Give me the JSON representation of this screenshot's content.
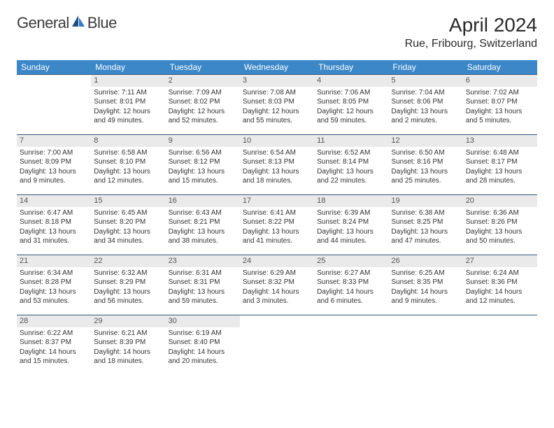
{
  "brand": {
    "name1": "General",
    "name2": "Blue"
  },
  "title": "April 2024",
  "location": "Rue, Fribourg, Switzerland",
  "header_bg": "#3b87c8",
  "days": [
    "Sunday",
    "Monday",
    "Tuesday",
    "Wednesday",
    "Thursday",
    "Friday",
    "Saturday"
  ],
  "weeks": [
    [
      null,
      {
        "n": "1",
        "sr": "7:11 AM",
        "ss": "8:01 PM",
        "dl": "12 hours and 49 minutes."
      },
      {
        "n": "2",
        "sr": "7:09 AM",
        "ss": "8:02 PM",
        "dl": "12 hours and 52 minutes."
      },
      {
        "n": "3",
        "sr": "7:08 AM",
        "ss": "8:03 PM",
        "dl": "12 hours and 55 minutes."
      },
      {
        "n": "4",
        "sr": "7:06 AM",
        "ss": "8:05 PM",
        "dl": "12 hours and 59 minutes."
      },
      {
        "n": "5",
        "sr": "7:04 AM",
        "ss": "8:06 PM",
        "dl": "13 hours and 2 minutes."
      },
      {
        "n": "6",
        "sr": "7:02 AM",
        "ss": "8:07 PM",
        "dl": "13 hours and 5 minutes."
      }
    ],
    [
      {
        "n": "7",
        "sr": "7:00 AM",
        "ss": "8:09 PM",
        "dl": "13 hours and 9 minutes."
      },
      {
        "n": "8",
        "sr": "6:58 AM",
        "ss": "8:10 PM",
        "dl": "13 hours and 12 minutes."
      },
      {
        "n": "9",
        "sr": "6:56 AM",
        "ss": "8:12 PM",
        "dl": "13 hours and 15 minutes."
      },
      {
        "n": "10",
        "sr": "6:54 AM",
        "ss": "8:13 PM",
        "dl": "13 hours and 18 minutes."
      },
      {
        "n": "11",
        "sr": "6:52 AM",
        "ss": "8:14 PM",
        "dl": "13 hours and 22 minutes."
      },
      {
        "n": "12",
        "sr": "6:50 AM",
        "ss": "8:16 PM",
        "dl": "13 hours and 25 minutes."
      },
      {
        "n": "13",
        "sr": "6:48 AM",
        "ss": "8:17 PM",
        "dl": "13 hours and 28 minutes."
      }
    ],
    [
      {
        "n": "14",
        "sr": "6:47 AM",
        "ss": "8:18 PM",
        "dl": "13 hours and 31 minutes."
      },
      {
        "n": "15",
        "sr": "6:45 AM",
        "ss": "8:20 PM",
        "dl": "13 hours and 34 minutes."
      },
      {
        "n": "16",
        "sr": "6:43 AM",
        "ss": "8:21 PM",
        "dl": "13 hours and 38 minutes."
      },
      {
        "n": "17",
        "sr": "6:41 AM",
        "ss": "8:22 PM",
        "dl": "13 hours and 41 minutes."
      },
      {
        "n": "18",
        "sr": "6:39 AM",
        "ss": "8:24 PM",
        "dl": "13 hours and 44 minutes."
      },
      {
        "n": "19",
        "sr": "6:38 AM",
        "ss": "8:25 PM",
        "dl": "13 hours and 47 minutes."
      },
      {
        "n": "20",
        "sr": "6:36 AM",
        "ss": "8:26 PM",
        "dl": "13 hours and 50 minutes."
      }
    ],
    [
      {
        "n": "21",
        "sr": "6:34 AM",
        "ss": "8:28 PM",
        "dl": "13 hours and 53 minutes."
      },
      {
        "n": "22",
        "sr": "6:32 AM",
        "ss": "8:29 PM",
        "dl": "13 hours and 56 minutes."
      },
      {
        "n": "23",
        "sr": "6:31 AM",
        "ss": "8:31 PM",
        "dl": "13 hours and 59 minutes."
      },
      {
        "n": "24",
        "sr": "6:29 AM",
        "ss": "8:32 PM",
        "dl": "14 hours and 3 minutes."
      },
      {
        "n": "25",
        "sr": "6:27 AM",
        "ss": "8:33 PM",
        "dl": "14 hours and 6 minutes."
      },
      {
        "n": "26",
        "sr": "6:25 AM",
        "ss": "8:35 PM",
        "dl": "14 hours and 9 minutes."
      },
      {
        "n": "27",
        "sr": "6:24 AM",
        "ss": "8:36 PM",
        "dl": "14 hours and 12 minutes."
      }
    ],
    [
      {
        "n": "28",
        "sr": "6:22 AM",
        "ss": "8:37 PM",
        "dl": "14 hours and 15 minutes."
      },
      {
        "n": "29",
        "sr": "6:21 AM",
        "ss": "8:39 PM",
        "dl": "14 hours and 18 minutes."
      },
      {
        "n": "30",
        "sr": "6:19 AM",
        "ss": "8:40 PM",
        "dl": "14 hours and 20 minutes."
      },
      null,
      null,
      null,
      null
    ]
  ],
  "labels": {
    "sunrise": "Sunrise:",
    "sunset": "Sunset:",
    "daylight": "Daylight:"
  }
}
